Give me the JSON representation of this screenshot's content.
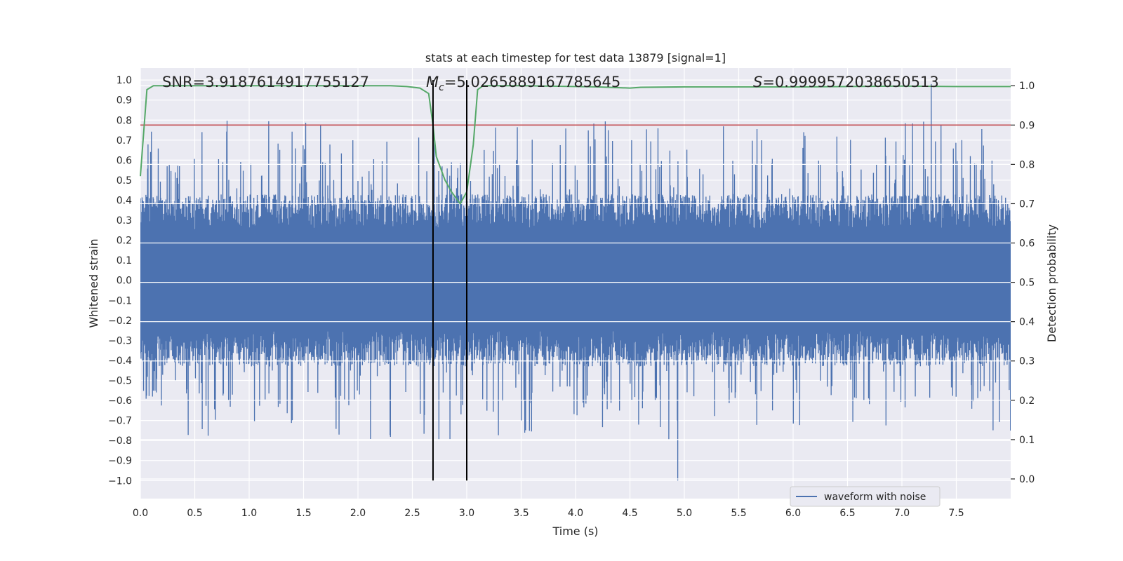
{
  "chart_data": {
    "type": "line",
    "title": "stats at each timestep for test data 13879 [signal=1]",
    "xlabel": "Time (s)",
    "ylabel_left": "Whitened strain",
    "ylabel_right": "Detection probability",
    "xlim": [
      0.0,
      8.0
    ],
    "ylim_left": [
      -1.09,
      1.06
    ],
    "ylim_right": [
      -0.05,
      1.045
    ],
    "x_ticks": [
      "0.0",
      "0.5",
      "1.0",
      "1.5",
      "2.0",
      "2.5",
      "3.0",
      "3.5",
      "4.0",
      "4.5",
      "5.0",
      "5.5",
      "6.0",
      "6.5",
      "7.0",
      "7.5"
    ],
    "x_tick_values": [
      0.0,
      0.5,
      1.0,
      1.5,
      2.0,
      2.5,
      3.0,
      3.5,
      4.0,
      4.5,
      5.0,
      5.5,
      6.0,
      6.5,
      7.0,
      7.5
    ],
    "y_ticks_left": [
      "1.0",
      "0.9",
      "0.8",
      "0.7",
      "0.6",
      "0.5",
      "0.4",
      "0.3",
      "0.2",
      "0.1",
      "0.0",
      "−0.1",
      "−0.2",
      "−0.3",
      "−0.4",
      "−0.5",
      "−0.6",
      "−0.7",
      "−0.8",
      "−0.9",
      "−1.0"
    ],
    "y_tick_values_left": [
      1.0,
      0.9,
      0.8,
      0.7,
      0.6,
      0.5,
      0.4,
      0.3,
      0.2,
      0.1,
      0.0,
      -0.1,
      -0.2,
      -0.3,
      -0.4,
      -0.5,
      -0.6,
      -0.7,
      -0.8,
      -0.9,
      -1.0
    ],
    "y_ticks_right": [
      "1.0",
      "0.9",
      "0.8",
      "0.7",
      "0.6",
      "0.5",
      "0.4",
      "0.3",
      "0.2",
      "0.1",
      "0.0"
    ],
    "y_tick_values_right": [
      1.0,
      0.9,
      0.8,
      0.7,
      0.6,
      0.5,
      0.4,
      0.3,
      0.2,
      0.1,
      0.0
    ],
    "annotations": {
      "snr": "SNR=3.9187614917755127",
      "mc_symbol": "M",
      "mc_sub": "c",
      "mc_value": "=5.0265889167785645",
      "s_symbol": "S",
      "s_value": "=0.9999572038650513"
    },
    "legend": {
      "label": "waveform with noise",
      "position": "lower-right"
    },
    "threshold": {
      "value": 0.9,
      "axis": "right",
      "color": "#c44e52"
    },
    "vertical_lines": [
      2.69,
      3.0
    ],
    "detection_probability": {
      "name": "Detection probability",
      "color": "#55a868",
      "x": [
        0.0,
        0.06,
        0.12,
        0.5,
        1.0,
        1.5,
        2.0,
        2.3,
        2.45,
        2.57,
        2.65,
        2.69,
        2.72,
        2.8,
        2.86,
        2.94,
        3.0,
        3.06,
        3.1,
        3.15,
        3.3,
        3.5,
        4.0,
        4.2,
        4.5,
        4.6,
        5.0,
        6.0,
        6.5,
        7.0,
        7.5,
        8.0
      ],
      "y": [
        0.77,
        0.99,
        1.0,
        1.0,
        1.0,
        1.0,
        1.0,
        1.0,
        0.998,
        0.994,
        0.98,
        0.9,
        0.82,
        0.76,
        0.73,
        0.7,
        0.73,
        0.85,
        0.99,
        1.0,
        1.0,
        1.0,
        0.998,
        0.997,
        0.994,
        0.996,
        0.997,
        0.997,
        0.998,
        0.999,
        0.998,
        0.998
      ]
    },
    "waveform": {
      "name": "waveform with noise",
      "color": "#4c72b0",
      "points": 4096,
      "typical_range": [
        -0.4,
        0.4
      ],
      "min": -1.0,
      "max": 0.98
    }
  }
}
